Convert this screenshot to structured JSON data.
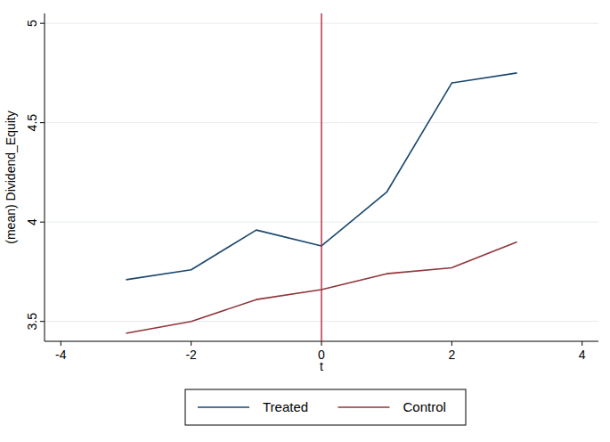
{
  "chart_data": {
    "type": "line",
    "x_label": "t",
    "y_label": "(mean) Dividend_Equity",
    "x": [
      -3,
      -2,
      -1,
      0,
      1,
      2,
      3
    ],
    "series": [
      {
        "name": "Treated",
        "color": "#1a476f",
        "values": [
          3.71,
          3.76,
          3.96,
          3.88,
          4.15,
          4.7,
          4.75
        ]
      },
      {
        "name": "Control",
        "color": "#90353b",
        "values": [
          3.44,
          3.5,
          3.61,
          3.66,
          3.74,
          3.77,
          3.9
        ]
      }
    ],
    "xlim": [
      -4.25,
      4.25
    ],
    "ylim": [
      3.4,
      5.05
    ],
    "xticks": [
      -4,
      -2,
      0,
      2,
      4
    ],
    "yticks": [
      3.5,
      4,
      4.5,
      5
    ],
    "xline": 0,
    "grid": true,
    "legend": "bottom"
  }
}
